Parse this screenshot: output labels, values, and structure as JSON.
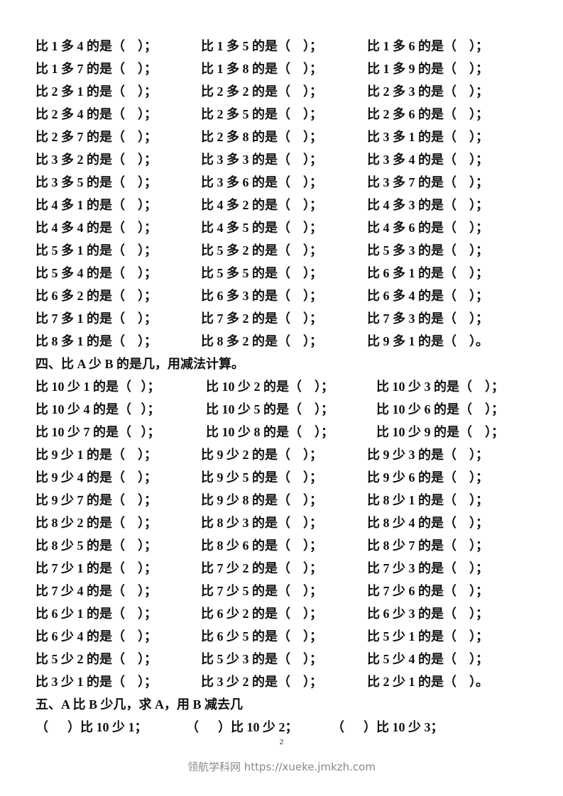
{
  "section3_rows": [
    [
      "比 1 多 4 的是（    ）；",
      "比 1 多 5 的是（    ）；",
      "比 1 多 6 的是（    ）；"
    ],
    [
      "比 1 多 7 的是（    ）；",
      "比 1 多 8 的是（    ）；",
      "比 1 多 9 的是（    ）；"
    ],
    [
      "比 2 多 1 的是（    ）；",
      "比 2 多 2 的是（    ）；",
      "比 2 多 3 的是（    ）；"
    ],
    [
      "比 2 多 4 的是（    ）；",
      "比 2 多 5 的是（    ）；",
      "比 2 多 6 的是（    ）；"
    ],
    [
      "比 2 多 7 的是（    ）；",
      "比 2 多 8 的是（    ）；",
      "比 3 多 1 的是（    ）；"
    ],
    [
      "比 3 多 2 的是（    ）；",
      "比 3 多 3 的是（    ）；",
      "比 3 多 4 的是（    ）；"
    ],
    [
      "比 3 多 5 的是（    ）；",
      "比 3 多 6 的是（    ）；",
      "比 3 多 7 的是（    ）；"
    ],
    [
      "比 4 多 1 的是（    ）；",
      "比 4 多 2 的是（    ）；",
      "比 4 多 3 的是（    ）；"
    ],
    [
      "比 4 多 4 的是（    ）；",
      "比 4 多 5 的是（    ）；",
      "比 4 多 6 的是（    ）；"
    ],
    [
      "比 5 多 1 的是（    ）；",
      "比 5 多 2 的是（    ）；",
      "比 5 多 3 的是（    ）；"
    ],
    [
      "比 5 多 4 的是（    ）；",
      "比 5 多 5 的是（    ）；",
      "比 6 多 1 的是（    ）；"
    ],
    [
      "比 6 多 2 的是（    ）；",
      "比 6 多 3 的是（    ）；",
      "比 6 多 4 的是（    ）；"
    ],
    [
      "比 7 多 1 的是（    ）；",
      "比 7 多 2 的是（    ）；",
      "比 7 多 3 的是（    ）；"
    ],
    [
      "比 8 多 1 的是（    ）；",
      "比 8 多 2 的是（    ）；",
      "比 9 多 1 的是（    ）。"
    ]
  ],
  "section4_title": "四、比 A 少 B 的是几，用减法计算。",
  "section4_rows": [
    [
      "比 10 少 1 的是（   ）；",
      "比 10 少 2 的是（    ）；",
      "比 10 少 3 的是（    ）；"
    ],
    [
      "比 10 少 4 的是（   ）；",
      "比 10 少 5 的是（    ）；",
      "比 10 少 6 的是（    ）；"
    ],
    [
      "比 10 少 7 的是（   ）；",
      "比 10 少 8 的是（    ）；",
      "比 10 少 9 的是（    ）；"
    ],
    [
      "比 9 少 1 的是（    ）；",
      "比 9 少 2 的是（    ）；",
      "比 9 少 3 的是（    ）；"
    ],
    [
      "比 9 少 4 的是（    ）；",
      "比 9 少 5 的是（    ）；",
      "比 9 少 6 的是（    ）；"
    ],
    [
      "比 9 少 7 的是（    ）；",
      "比 9 少 8 的是（    ）；",
      "比 8 少 1 的是（    ）；"
    ],
    [
      "比 8 少 2 的是（    ）；",
      "比 8 少 3 的是（    ）；",
      "比 8 少 4 的是（    ）；"
    ],
    [
      "比 8 少 5 的是（    ）；",
      "比 8 少 6 的是（    ）；",
      "比 8 少 7 的是（    ）；"
    ],
    [
      "比 7 少 1 的是（    ）；",
      "比 7 少 2 的是（    ）；",
      "比 7 少 3 的是（    ）；"
    ],
    [
      "比 7 少 4 的是（    ）；",
      "比 7 少 5 的是（    ）；",
      "比 7 少 6 的是（    ）；"
    ],
    [
      "比 6 少 1 的是（    ）；",
      "比 6 少 2 的是（    ）；",
      "比 6 少 3 的是（    ）；"
    ],
    [
      "比 6 少 4 的是（    ）；",
      "比 6 少 5 的是（    ）；",
      "比 5 少 1 的是（    ）；"
    ],
    [
      "比 5 少 2 的是（    ）；",
      "比 5 少 3 的是（    ）；",
      "比 5 少 4 的是（    ）；"
    ],
    [
      "比 3 少 1 的是（    ）；",
      "比 3 少 2 的是（    ）；",
      "比 2 少 1 的是（    ）。"
    ]
  ],
  "section5_title": "五、A 比 B 少几，求 A，用 B 减去几",
  "section5_rows": [
    [
      "（      ）比 10 少 1；",
      "（      ）比 10 少 2；",
      "（      ）比 10 少 3；"
    ]
  ],
  "page_number": "2",
  "footer": "领航学科网 https://xueke.jmkzh.com"
}
